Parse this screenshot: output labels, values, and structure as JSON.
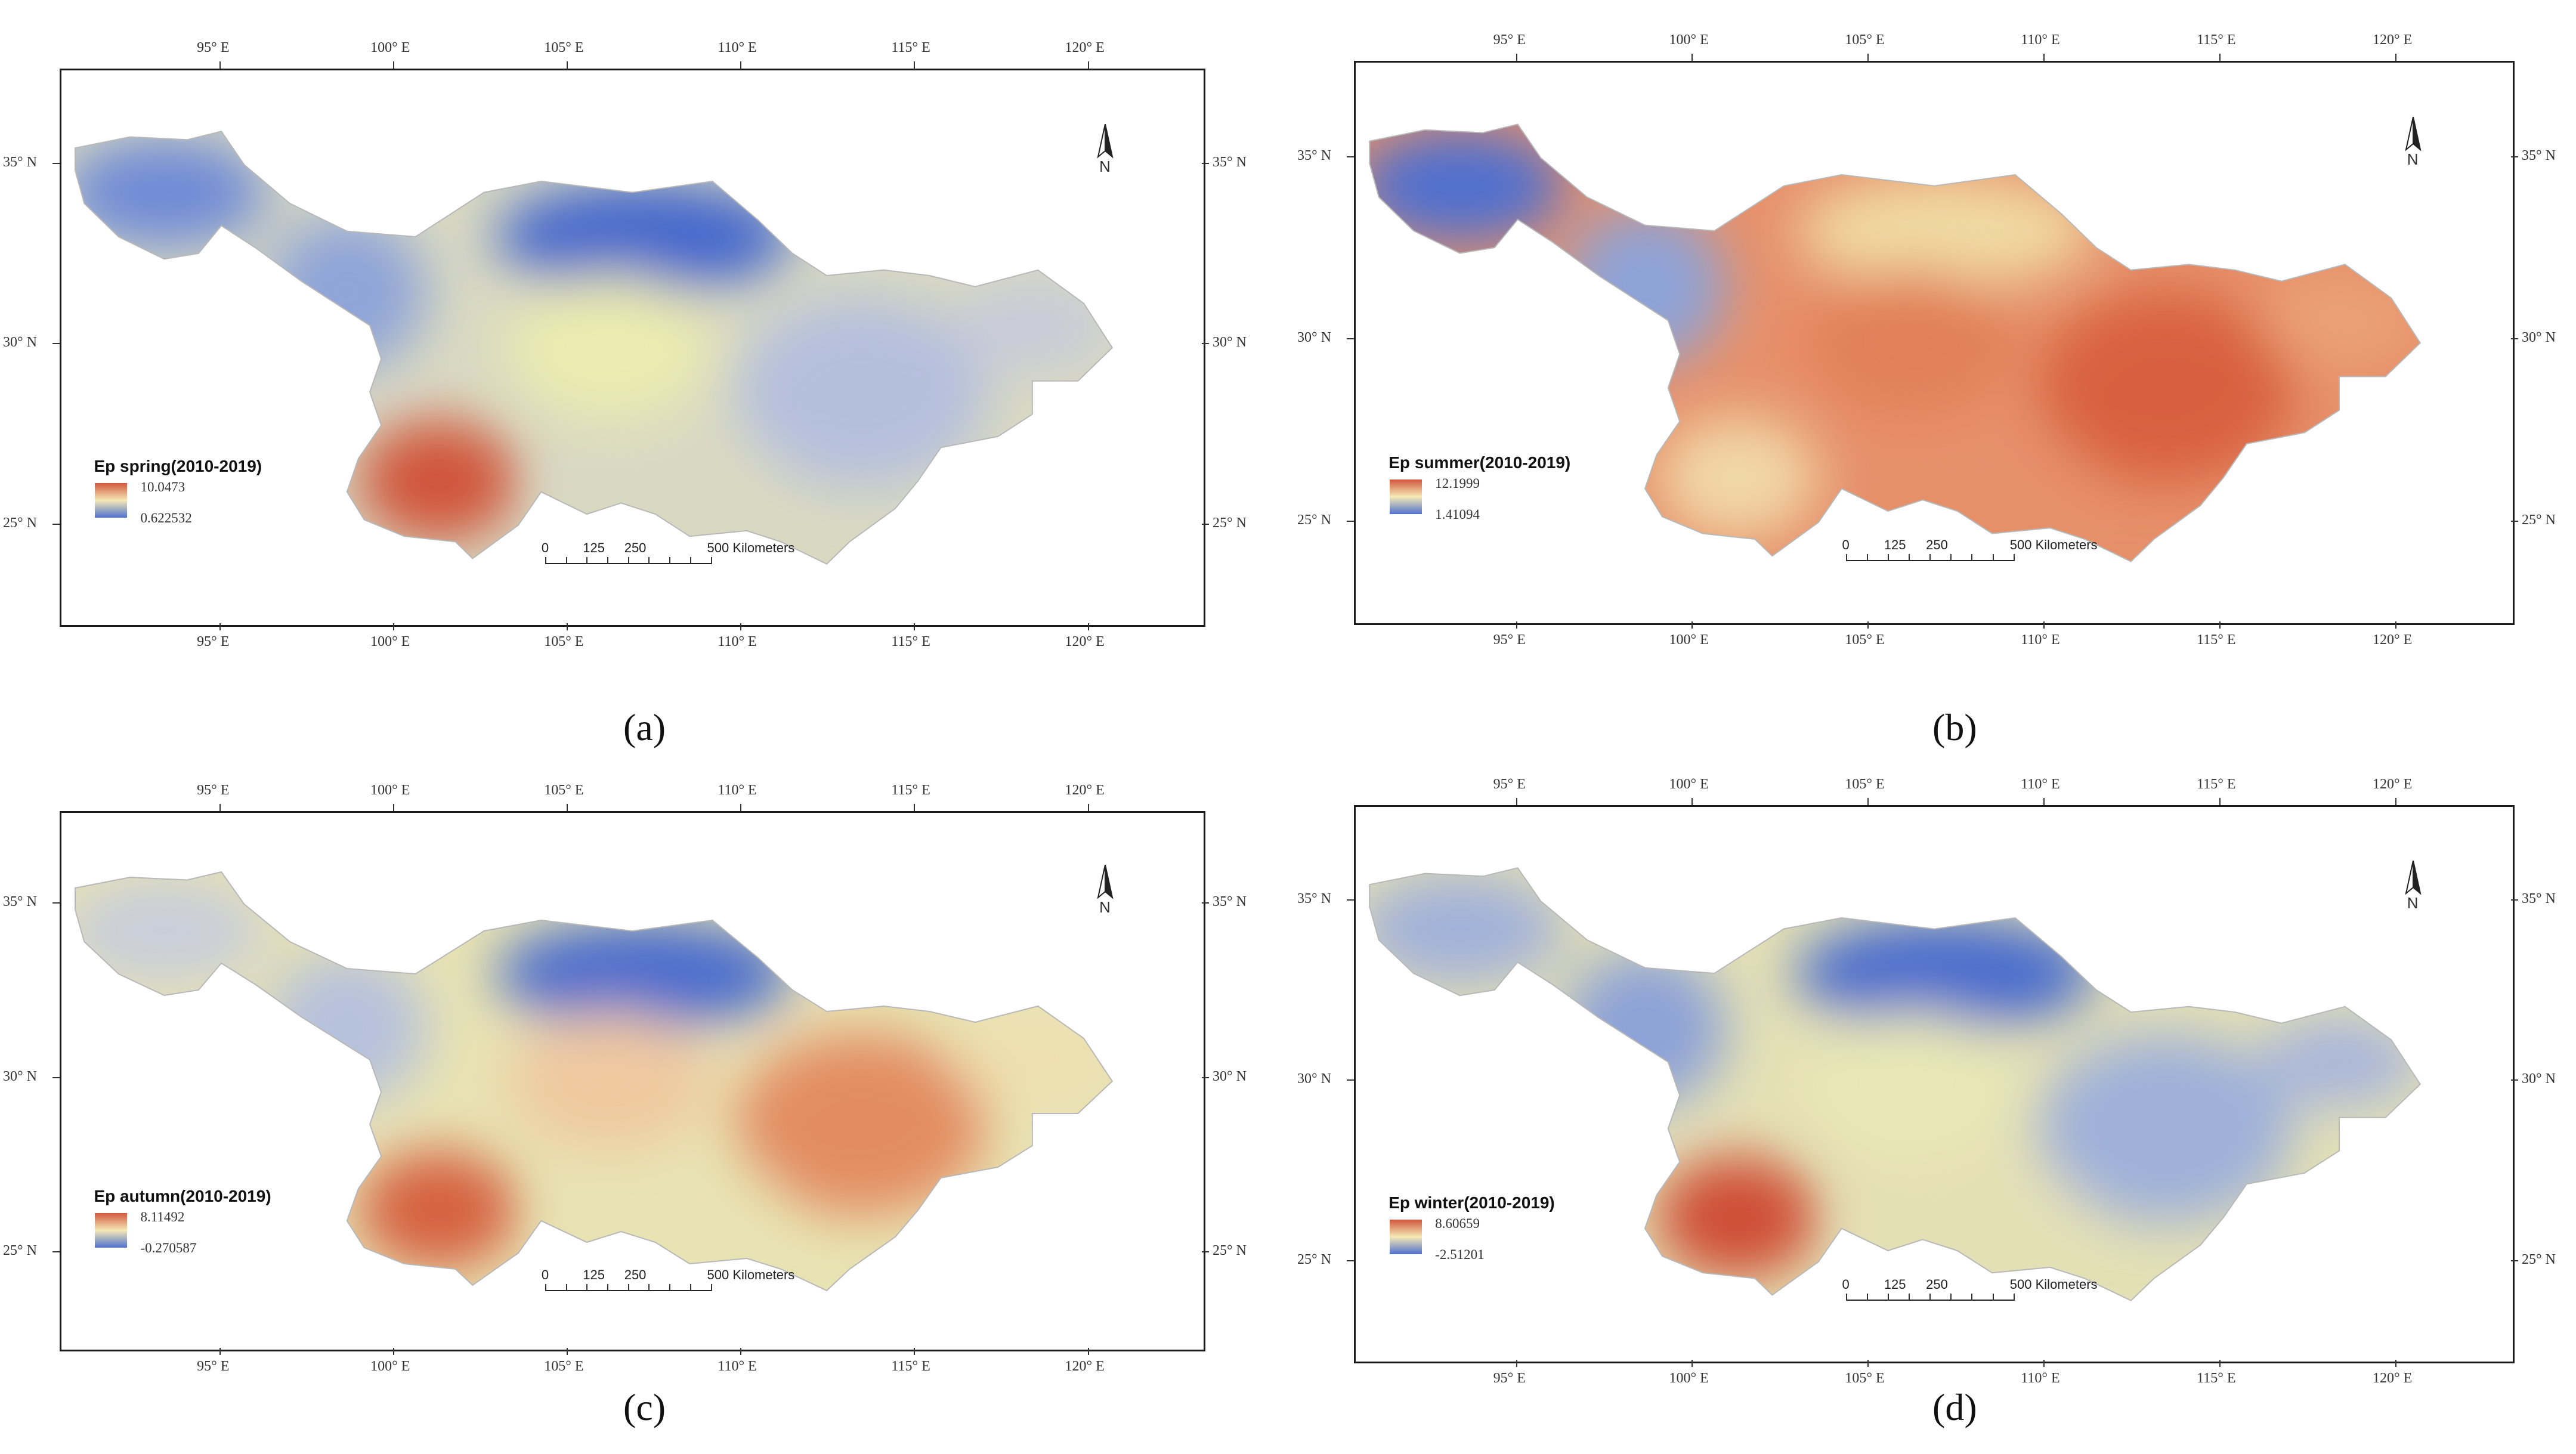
{
  "figure": {
    "panels": [
      {
        "caption": "(a)",
        "legend_title": "Ep spring(2010-2019)",
        "max": "10.0473",
        "min": "0.622532",
        "ramp_top": "#d2563c",
        "ramp_bottom": "#4f70cf",
        "regions": {
          "west": "#6f8bd6",
          "tibet_south": "#8fa4d8",
          "sichuan_basin": "#ecebb0",
          "north_mid": "#4468cc",
          "east": "#b4bfdd",
          "southwest": "#d0553a",
          "south_mid": "#d9d9c2",
          "lower_east": "#c7cbd9"
        }
      },
      {
        "caption": "(b)",
        "legend_title": "Ep summer(2010-2019)",
        "max": "12.1999",
        "min": "1.41094",
        "ramp_top": "#d2563c",
        "ramp_bottom": "#4f70cf",
        "regions": {
          "west": "#4f70cf",
          "tibet_south": "#8ea3d7",
          "sichuan_basin": "#e2805a",
          "north_mid": "#f0d9a2",
          "east": "#d8603f",
          "southwest": "#f1d7a6",
          "south_mid": "#e6906a",
          "lower_east": "#eba176"
        }
      },
      {
        "caption": "(c)",
        "legend_title": "Ep autumn(2010-2019)",
        "max": "8.11492",
        "min": "-0.270587",
        "ramp_top": "#d2563c",
        "ramp_bottom": "#4f70cf",
        "regions": {
          "west": "#c9ceda",
          "tibet_south": "#b6c1dc",
          "sichuan_basin": "#efc9a0",
          "north_mid": "#4a6ccd",
          "east": "#e38c62",
          "southwest": "#d5603f",
          "south_mid": "#e8e3b3",
          "lower_east": "#eedfb0"
        }
      },
      {
        "caption": "(d)",
        "legend_title": "Ep winter(2010-2019)",
        "max": "8.60659",
        "min": "-2.51201",
        "ramp_top": "#d2563c",
        "ramp_bottom": "#4f70cf",
        "regions": {
          "west": "#a2b1d9",
          "tibet_south": "#8da2d7",
          "sichuan_basin": "#e9e7b6",
          "north_mid": "#4a6ccd",
          "east": "#9fb0d9",
          "southwest": "#cf4e35",
          "south_mid": "#e4e0b5",
          "lower_east": "#a7b5db"
        }
      }
    ],
    "lon_labels": [
      "95° E",
      "100° E",
      "105° E",
      "110° E",
      "115° E",
      "120° E"
    ],
    "lat_labels": [
      "35° N",
      "30° N",
      "25° N"
    ],
    "scalebar_labels": [
      "0",
      "125",
      "250",
      "500 Kilometers"
    ],
    "north_label": "N"
  }
}
